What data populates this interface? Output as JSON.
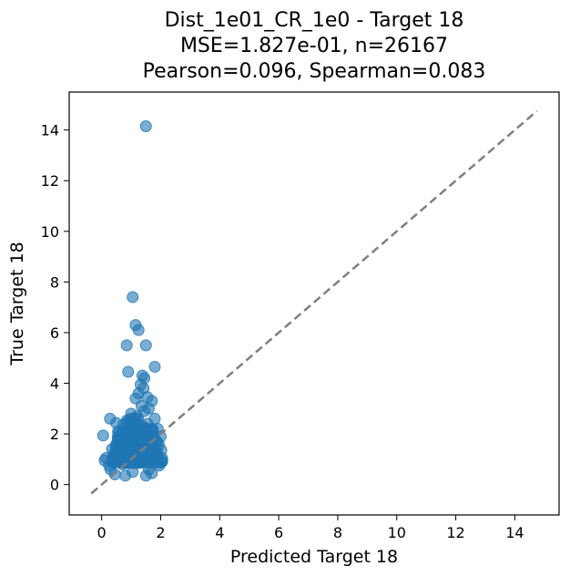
{
  "chart_data": {
    "type": "scatter",
    "title_lines": [
      "Dist_1e01_CR_1e0 - Target 18",
      "MSE=1.827e-01, n=26167",
      "Pearson=0.096, Spearman=0.083"
    ],
    "xlabel": "Predicted Target 18",
    "ylabel": "True Target 18",
    "xlim": [
      -1.1,
      15.5
    ],
    "ylim": [
      -1.2,
      15.5
    ],
    "xticks": [
      "0",
      "2",
      "4",
      "6",
      "8",
      "10",
      "12",
      "14"
    ],
    "yticks": [
      "0",
      "2",
      "4",
      "6",
      "8",
      "10",
      "12",
      "14"
    ],
    "grid": false,
    "point_color": "#1f77b4",
    "point_alpha": 0.6,
    "reference_line": {
      "style": "dashed",
      "color": "#7f7f7f",
      "from": [
        -0.35,
        -0.35
      ],
      "to": [
        14.75,
        14.75
      ]
    },
    "points": [
      [
        1.5,
        14.15
      ],
      [
        1.05,
        7.4
      ],
      [
        1.15,
        6.3
      ],
      [
        1.25,
        6.1
      ],
      [
        0.85,
        5.5
      ],
      [
        1.5,
        5.5
      ],
      [
        1.8,
        4.65
      ],
      [
        0.9,
        4.45
      ],
      [
        1.38,
        4.3
      ],
      [
        1.45,
        4.2
      ],
      [
        1.32,
        3.95
      ],
      [
        1.42,
        3.8
      ],
      [
        1.25,
        3.6
      ],
      [
        1.55,
        3.45
      ],
      [
        1.7,
        3.3
      ],
      [
        1.15,
        3.4
      ],
      [
        1.35,
        3.1
      ],
      [
        1.6,
        3.0
      ],
      [
        1.0,
        2.8
      ],
      [
        1.45,
        2.9
      ],
      [
        1.8,
        2.6
      ],
      [
        0.9,
        2.5
      ],
      [
        1.2,
        2.7
      ],
      [
        1.9,
        2.2
      ],
      [
        1.55,
        2.4
      ],
      [
        1.05,
        2.3
      ],
      [
        0.75,
        2.1
      ],
      [
        1.3,
        2.0
      ],
      [
        1.7,
        1.9
      ],
      [
        2.0,
        1.9
      ],
      [
        0.6,
        1.7
      ],
      [
        0.5,
        1.6
      ],
      [
        1.1,
        1.8
      ],
      [
        1.45,
        1.7
      ],
      [
        0.9,
        1.5
      ],
      [
        0.35,
        1.4
      ],
      [
        1.8,
        1.4
      ],
      [
        1.25,
        1.3
      ],
      [
        0.55,
        1.2
      ],
      [
        0.15,
        1.05
      ],
      [
        0.1,
        0.95
      ],
      [
        2.05,
        0.9
      ],
      [
        1.95,
        0.75
      ],
      [
        0.3,
        0.6
      ],
      [
        1.6,
        0.6
      ],
      [
        0.7,
        0.8
      ],
      [
        1.2,
        0.9
      ],
      [
        1.05,
        0.5
      ],
      [
        0.45,
        0.4
      ],
      [
        1.7,
        0.45
      ],
      [
        0.95,
        1.1
      ],
      [
        1.35,
        1.0
      ],
      [
        0.8,
        0.35
      ],
      [
        1.5,
        0.35
      ],
      [
        0.25,
        0.75
      ]
    ]
  }
}
